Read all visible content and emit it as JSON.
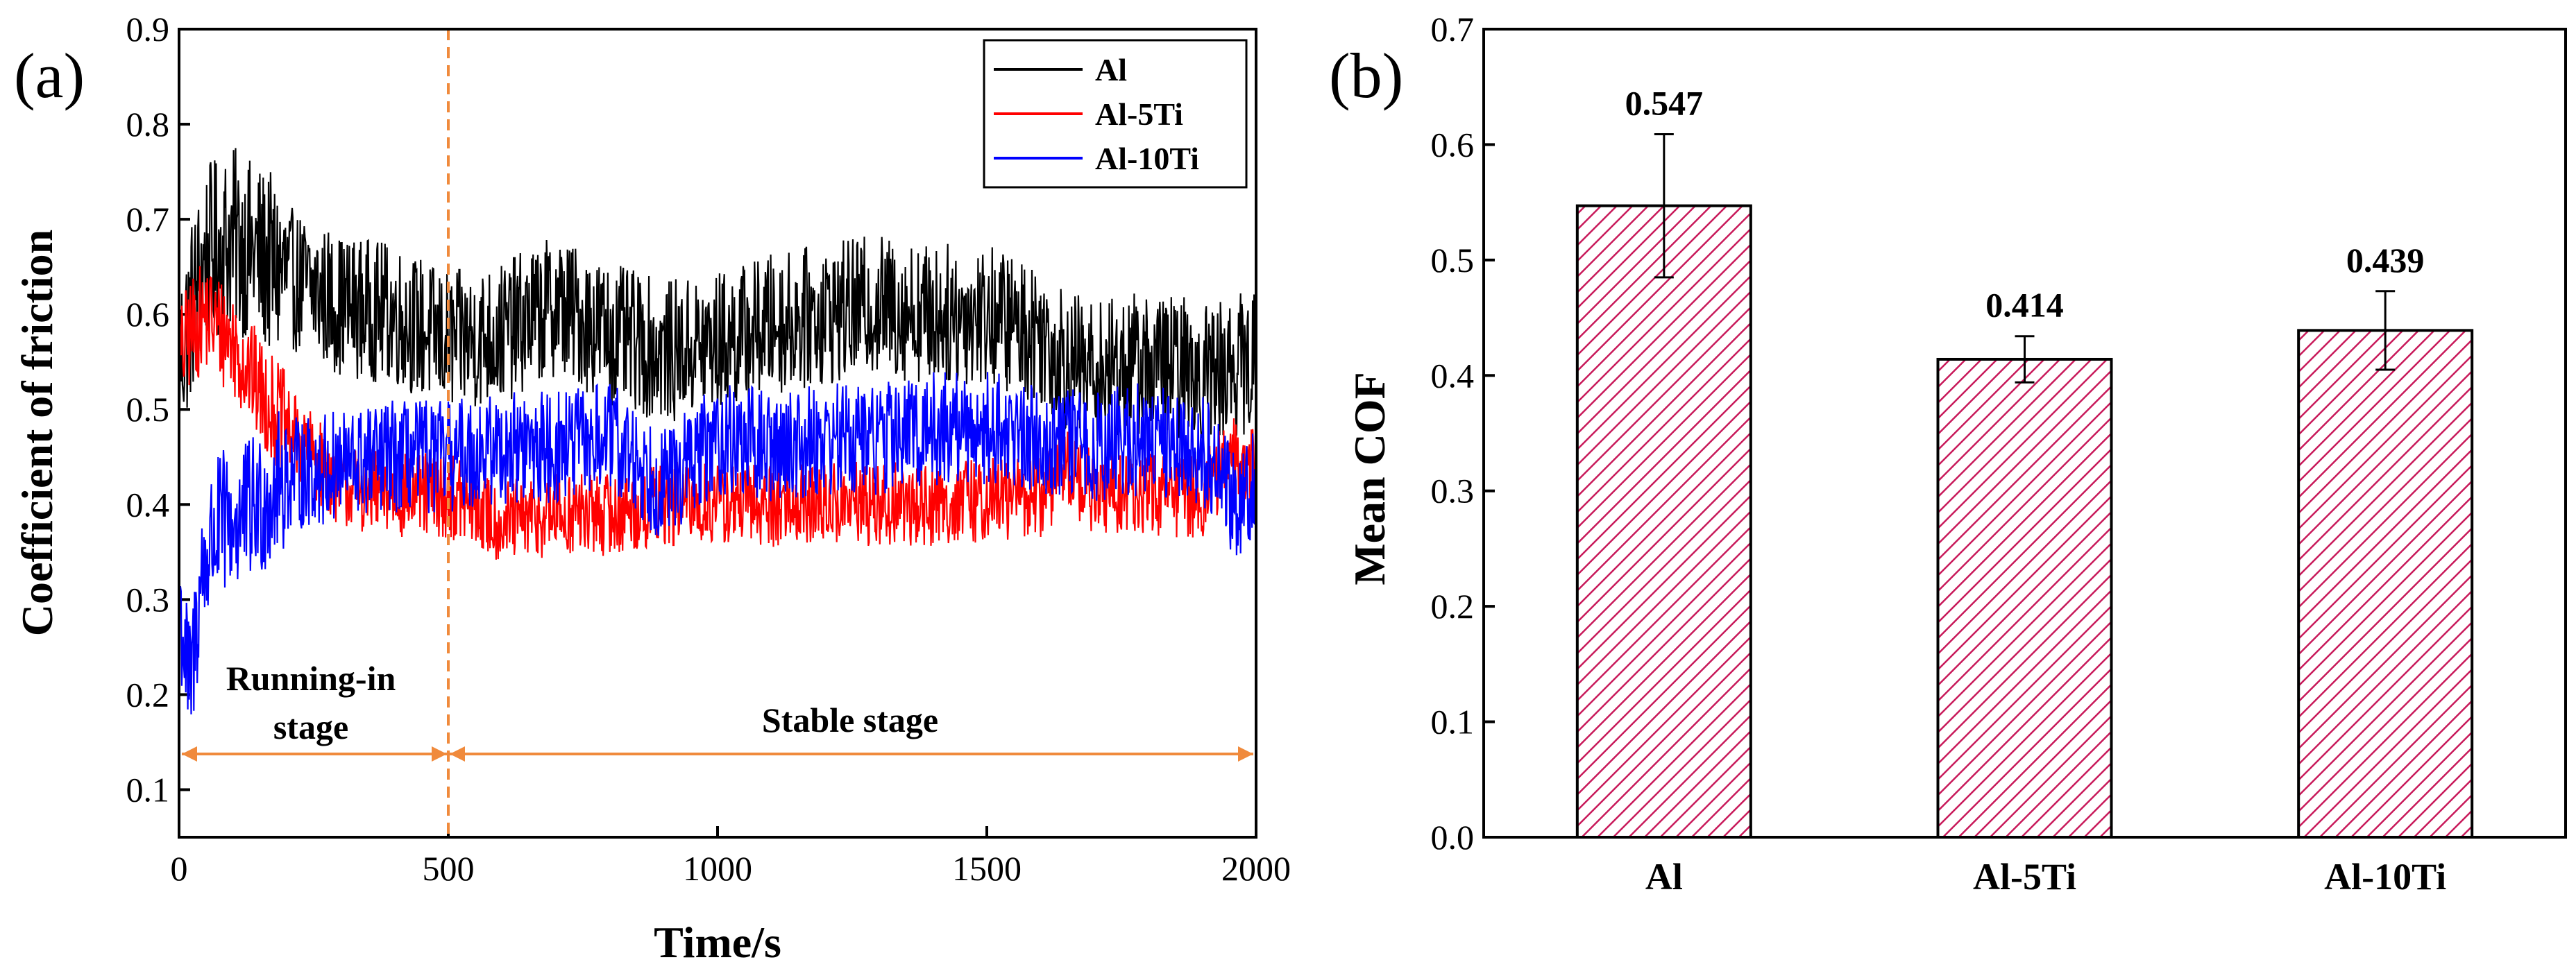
{
  "colors": {
    "Al": "#000000",
    "Al-5Ti": "#ff0000",
    "Al-10Ti": "#0000ff",
    "bar": "#c8195a",
    "annotation": "#f08a3c"
  },
  "chart_data": [
    {
      "panel": "(a)",
      "type": "line",
      "xlabel": "Time/s",
      "ylabel": "Coefficient of friction",
      "xlim": [
        0,
        2000
      ],
      "ylim": [
        0.05,
        0.9
      ],
      "xticks": [
        "0",
        "500",
        "1000",
        "1500",
        "2000"
      ],
      "yticks": [
        "0.1",
        "0.2",
        "0.3",
        "0.4",
        "0.5",
        "0.6",
        "0.7",
        "0.8",
        "0.9"
      ],
      "legend": [
        "Al",
        "Al-5Ti",
        "Al-10Ti"
      ],
      "legend_position": "top-right",
      "divider_x": 500,
      "annotations": {
        "running_in_line1": "Running-in",
        "running_in_line2": "stage",
        "stable": "Stable stage"
      },
      "series": [
        {
          "name": "Al",
          "x": [
            0,
            20,
            50,
            100,
            150,
            200,
            300,
            400,
            500,
            600,
            700,
            800,
            900,
            1000,
            1100,
            1200,
            1300,
            1400,
            1500,
            1600,
            1650,
            1700,
            1800,
            1900,
            2000
          ],
          "y": [
            0.55,
            0.6,
            0.66,
            0.68,
            0.66,
            0.64,
            0.61,
            0.6,
            0.57,
            0.58,
            0.61,
            0.58,
            0.56,
            0.57,
            0.59,
            0.6,
            0.61,
            0.6,
            0.6,
            0.58,
            0.55,
            0.54,
            0.55,
            0.54,
            0.55
          ]
        },
        {
          "name": "Al-5Ti",
          "x": [
            0,
            20,
            50,
            100,
            150,
            200,
            250,
            300,
            400,
            500,
            600,
            700,
            800,
            900,
            1000,
            1200,
            1400,
            1600,
            1650,
            1700,
            1800,
            1900,
            1950,
            2000
          ],
          "y": [
            0.55,
            0.58,
            0.6,
            0.57,
            0.52,
            0.48,
            0.45,
            0.42,
            0.41,
            0.41,
            0.38,
            0.39,
            0.39,
            0.4,
            0.4,
            0.4,
            0.4,
            0.41,
            0.44,
            0.41,
            0.41,
            0.41,
            0.45,
            0.44
          ]
        },
        {
          "name": "Al-10Ti",
          "x": [
            0,
            20,
            40,
            60,
            80,
            100,
            150,
            200,
            300,
            400,
            500,
            600,
            700,
            800,
            900,
            1000,
            1100,
            1200,
            1300,
            1400,
            1500,
            1600,
            1700,
            1800,
            1900,
            1960,
            2000
          ],
          "y": [
            0.3,
            0.2,
            0.32,
            0.36,
            0.38,
            0.38,
            0.4,
            0.43,
            0.44,
            0.45,
            0.45,
            0.46,
            0.46,
            0.47,
            0.42,
            0.47,
            0.46,
            0.47,
            0.47,
            0.48,
            0.48,
            0.47,
            0.46,
            0.47,
            0.46,
            0.4,
            0.43
          ]
        }
      ]
    },
    {
      "panel": "(b)",
      "type": "bar",
      "ylabel": "Mean COF",
      "ylim": [
        0,
        0.7
      ],
      "yticks": [
        "0.0",
        "0.1",
        "0.2",
        "0.3",
        "0.4",
        "0.5",
        "0.6",
        "0.7"
      ],
      "categories": [
        "Al",
        "Al-5Ti",
        "Al-10Ti"
      ],
      "values": [
        0.547,
        0.414,
        0.439
      ],
      "value_labels": [
        "0.547",
        "0.414",
        "0.439"
      ],
      "errors": [
        0.062,
        0.02,
        0.034
      ],
      "pattern": "diagonal-hatch"
    }
  ]
}
